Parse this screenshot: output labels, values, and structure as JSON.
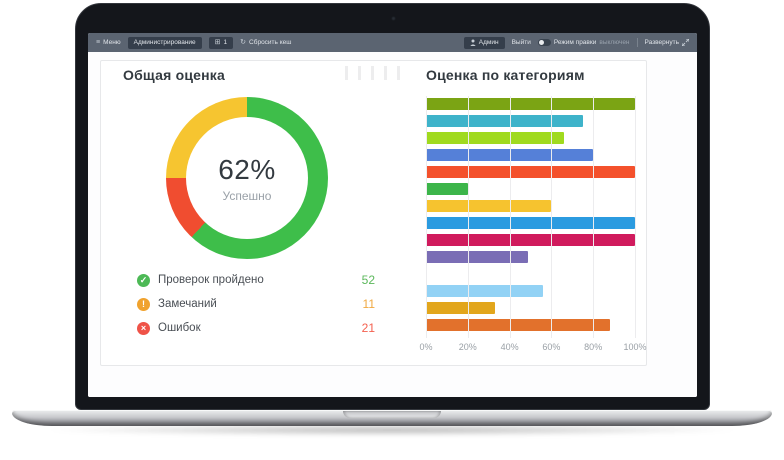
{
  "topbar": {
    "menu_label": "Меню",
    "administration_label": "Администрирование",
    "notifications_count": "1",
    "refresh_label": "Сбросить кеш",
    "user_label": "Админ",
    "logout_label": "Выйти",
    "edit_mode_label": "Режим правки",
    "edit_mode_state": "выключен",
    "expand_label": "Развернуть"
  },
  "panel": {
    "overall": {
      "title": "Общая оценка",
      "percent": "62%",
      "percent_caption": "Успешно",
      "legend": [
        {
          "icon": "check-circle",
          "icon_glyph": "✓",
          "icon_color": "#4db956",
          "label": "Проверок пройдено",
          "value": "52",
          "value_color": "#5cb85c"
        },
        {
          "icon": "exclamation-circle",
          "icon_glyph": "!",
          "icon_color": "#f0a22e",
          "label": "Замечаний",
          "value": "11",
          "value_color": "#f0a942"
        },
        {
          "icon": "cross-circle",
          "icon_glyph": "×",
          "icon_color": "#ef5348",
          "label": "Ошибок",
          "value": "21",
          "value_color": "#f4604f"
        }
      ]
    },
    "categories": {
      "title": "Оценка по категориям",
      "x_ticks": [
        "0%",
        "20%",
        "40%",
        "60%",
        "80%",
        "100%"
      ]
    }
  },
  "chart_data": [
    {
      "type": "pie",
      "variant": "donut",
      "title": "Общая оценка",
      "center_label": "62%",
      "center_caption": "Успешно",
      "legend_position": "bottom-left",
      "slices": [
        {
          "label": "Проверок пройдено",
          "value": 52,
          "percent": 62,
          "color": "#3ebe4a"
        },
        {
          "label": "Замечаний",
          "value": 11,
          "percent": 13,
          "color": "#f04d30"
        },
        {
          "label": "Ошибок",
          "value": 21,
          "percent": 25,
          "color": "#f6c530"
        }
      ]
    },
    {
      "type": "bar",
      "orientation": "horizontal",
      "title": "Оценка по категориям",
      "xlim": [
        0,
        100
      ],
      "x_ticks": [
        "0%",
        "20%",
        "40%",
        "60%",
        "80%",
        "100%"
      ],
      "grid": true,
      "bars": [
        {
          "value": 100,
          "color": "#7ba414"
        },
        {
          "value": 75,
          "color": "#3eb3ca"
        },
        {
          "value": 66,
          "color": "#a0da1e"
        },
        {
          "value": 80,
          "color": "#5580d8"
        },
        {
          "value": 100,
          "color": "#f4512c"
        },
        {
          "value": 20,
          "color": "#3cb54a"
        },
        {
          "value": 60,
          "color": "#f6c32f"
        },
        {
          "value": 100,
          "color": "#2b9be0"
        },
        {
          "value": 100,
          "color": "#d01a5d"
        },
        {
          "value": 49,
          "color": "#7a6db5"
        },
        {
          "value": 0,
          "color": "#cccccc"
        },
        {
          "value": 56,
          "color": "#92d2f5"
        },
        {
          "value": 33,
          "color": "#e2a61c"
        },
        {
          "value": 88,
          "color": "#e2712c"
        }
      ]
    }
  ]
}
